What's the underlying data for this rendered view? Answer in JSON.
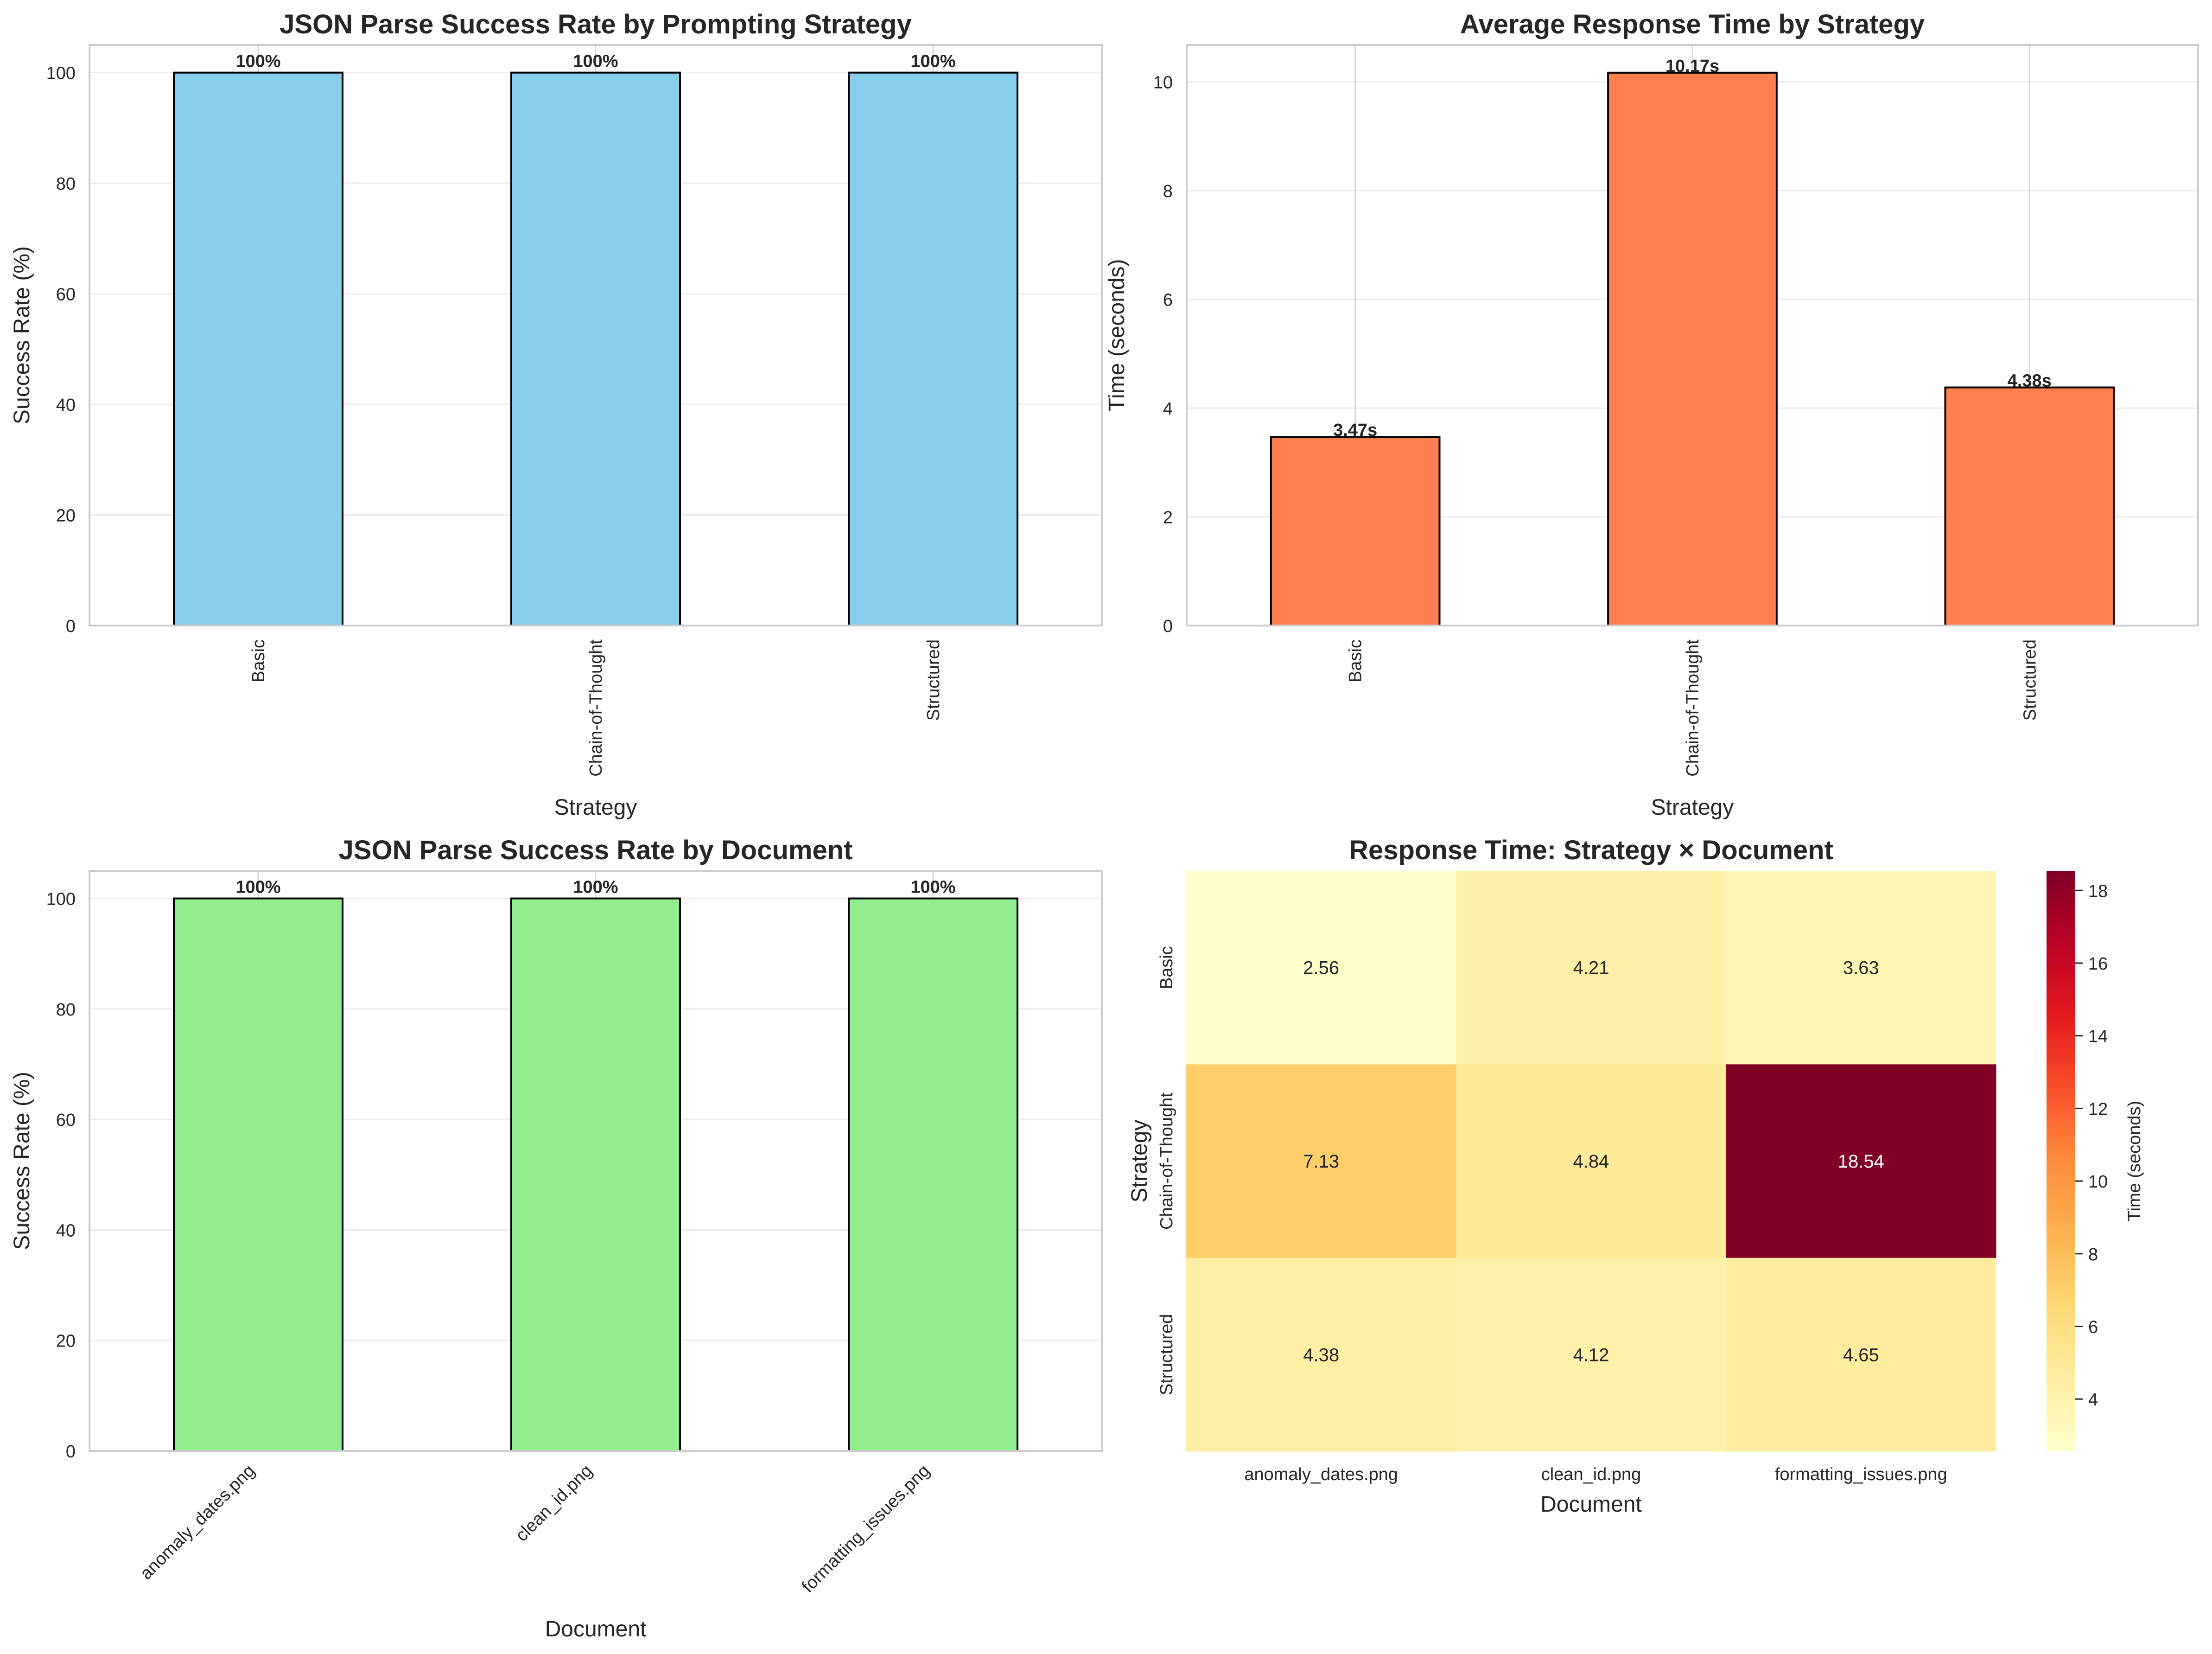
{
  "chart_data": [
    {
      "id": "strategy-success",
      "type": "bar",
      "title": "JSON Parse Success Rate by Prompting Strategy",
      "xlabel": "Strategy",
      "ylabel": "Success Rate (%)",
      "categories": [
        "Basic",
        "Chain-of-Thought",
        "Structured"
      ],
      "values": [
        100,
        100,
        100
      ],
      "value_labels": [
        "100%",
        "100%",
        "100%"
      ],
      "ylim": [
        0,
        105
      ],
      "yticks": [
        0,
        20,
        40,
        60,
        80,
        100
      ],
      "xtick_rotation": 90,
      "bar_color": "#87CEEB",
      "edge_color": "#000000",
      "grid": true
    },
    {
      "id": "strategy-time",
      "type": "bar",
      "title": "Average Response Time by Strategy",
      "xlabel": "Strategy",
      "ylabel": "Time (seconds)",
      "categories": [
        "Basic",
        "Chain-of-Thought",
        "Structured"
      ],
      "values": [
        3.47,
        10.17,
        4.38
      ],
      "value_labels": [
        "3.47s",
        "10.17s",
        "4.38s"
      ],
      "ylim": [
        0,
        10.68
      ],
      "yticks": [
        0,
        2,
        4,
        6,
        8,
        10
      ],
      "xtick_rotation": 90,
      "bar_color": "#FF7F50",
      "edge_color": "#000000",
      "grid": true
    },
    {
      "id": "document-success",
      "type": "bar",
      "title": "JSON Parse Success Rate by Document",
      "xlabel": "Document",
      "ylabel": "Success Rate (%)",
      "categories": [
        "anomaly_dates.png",
        "clean_id.png",
        "formatting_issues.png"
      ],
      "values": [
        100,
        100,
        100
      ],
      "value_labels": [
        "100%",
        "100%",
        "100%"
      ],
      "ylim": [
        0,
        105
      ],
      "yticks": [
        0,
        20,
        40,
        60,
        80,
        100
      ],
      "xtick_rotation": 45,
      "bar_color": "#90EE90",
      "edge_color": "#000000",
      "grid": true
    },
    {
      "id": "time-heatmap",
      "type": "heatmap",
      "title": "Response Time: Strategy × Document",
      "xlabel": "Document",
      "ylabel": "Strategy",
      "x": [
        "anomaly_dates.png",
        "clean_id.png",
        "formatting_issues.png"
      ],
      "y": [
        "Basic",
        "Chain-of-Thought",
        "Structured"
      ],
      "values": [
        [
          2.56,
          4.21,
          3.63
        ],
        [
          7.13,
          4.84,
          18.54
        ],
        [
          4.38,
          4.12,
          4.65
        ]
      ],
      "value_labels": [
        [
          "2.56",
          "4.21",
          "3.63"
        ],
        [
          "7.13",
          "4.84",
          "18.54"
        ],
        [
          "4.38",
          "4.12",
          "4.65"
        ]
      ],
      "colormap": "YlOrRd",
      "vmin": 2.56,
      "vmax": 18.54,
      "colorbar_label": "Time (seconds)",
      "colorbar_ticks": [
        4,
        6,
        8,
        10,
        12,
        14,
        16,
        18
      ]
    }
  ]
}
